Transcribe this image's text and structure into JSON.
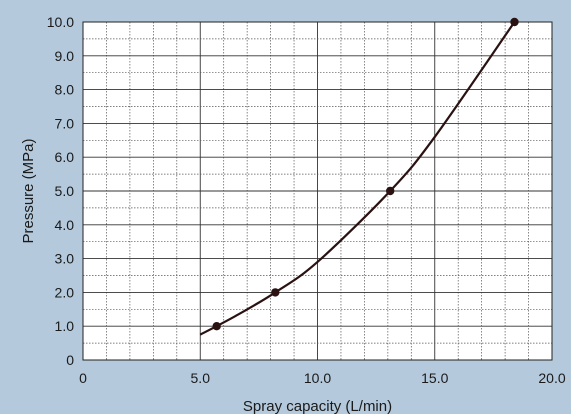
{
  "chart_data": {
    "type": "line",
    "title": "",
    "xlabel": "Spray capacity (L/min)",
    "ylabel": "Pressure (MPa)",
    "xlim": [
      0,
      20
    ],
    "ylim": [
      0,
      10
    ],
    "x_tick_labels": [
      "0",
      "5.0",
      "10.0",
      "15.0",
      "20.0"
    ],
    "y_tick_labels": [
      "0",
      "1.0",
      "2.0",
      "3.0",
      "4.0",
      "5.0",
      "6.0",
      "7.0",
      "8.0",
      "9.0",
      "10.0"
    ],
    "grid": true,
    "series": [
      {
        "curve": [
          [
            5.0,
            0.75
          ],
          [
            6.5,
            1.3
          ],
          [
            8.2,
            2.0
          ],
          [
            10.0,
            2.9
          ],
          [
            13.1,
            5.0
          ],
          [
            15.0,
            6.6
          ],
          [
            18.4,
            10.0
          ]
        ],
        "markers": [
          [
            5.7,
            1.0
          ],
          [
            8.2,
            2.0
          ],
          [
            13.1,
            5.0
          ],
          [
            18.4,
            10.0
          ]
        ],
        "color": "#2a1212"
      }
    ]
  }
}
